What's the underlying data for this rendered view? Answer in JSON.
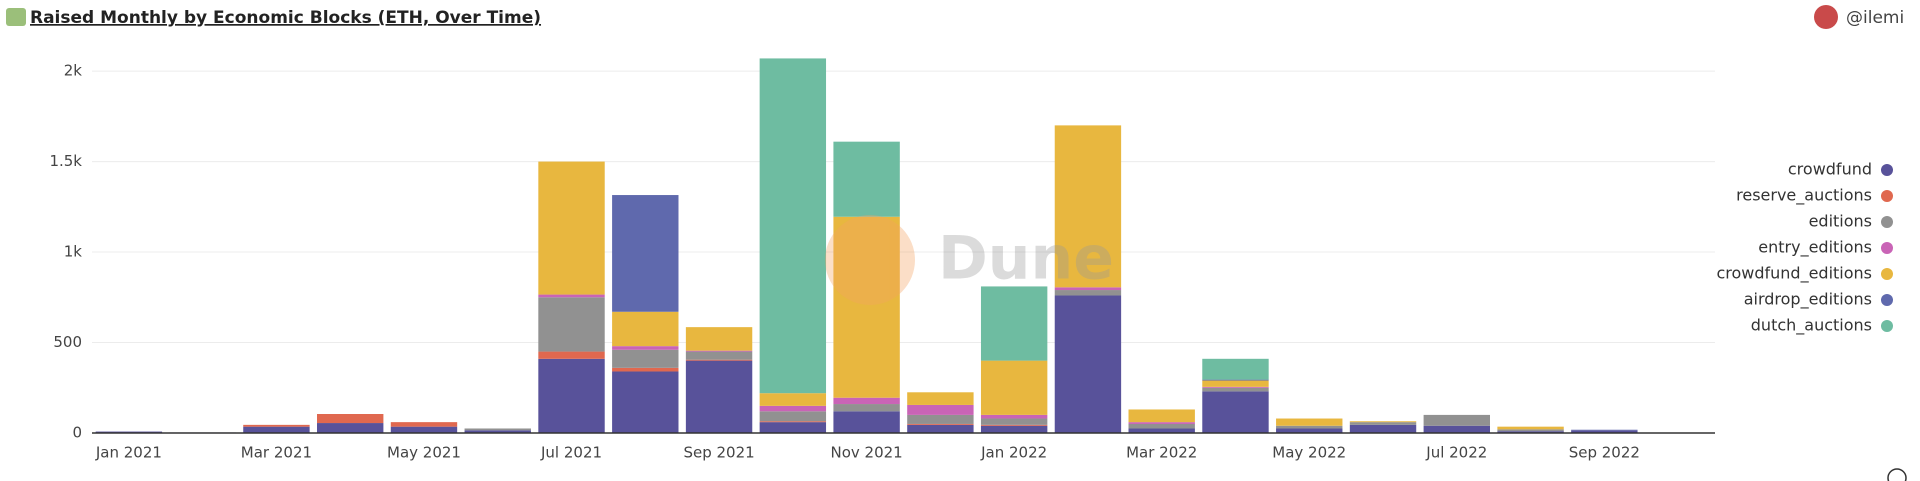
{
  "chart_data": {
    "type": "bar",
    "stacked": true,
    "title": "Raised Monthly by Economic Blocks (ETH, Over Time)",
    "author": "@ilemi",
    "watermark": "Dune",
    "categories": [
      "Jan 2021",
      null,
      "Mar 2021",
      null,
      "May 2021",
      null,
      "Jul 2021",
      null,
      "Sep 2021",
      null,
      "Nov 2021",
      null,
      "Jan 2022",
      null,
      "Mar 2022",
      null,
      "May 2022",
      null,
      "Jul 2022",
      null,
      "Sep 2022",
      null
    ],
    "series": [
      {
        "name": "crowdfund",
        "color": "#58529a",
        "values": [
          8,
          3,
          35,
          55,
          35,
          15,
          410,
          340,
          400,
          60,
          120,
          45,
          40,
          760,
          25,
          230,
          25,
          45,
          40,
          10,
          15,
          0
        ]
      },
      {
        "name": "reserve_auctions",
        "color": "#e0684f",
        "values": [
          0,
          0,
          10,
          50,
          25,
          0,
          40,
          20,
          5,
          5,
          0,
          5,
          5,
          0,
          0,
          0,
          0,
          0,
          0,
          0,
          0,
          0
        ]
      },
      {
        "name": "editions",
        "color": "#919191",
        "values": [
          0,
          0,
          0,
          0,
          0,
          10,
          300,
          100,
          45,
          55,
          40,
          50,
          35,
          30,
          25,
          20,
          15,
          15,
          60,
          10,
          0,
          0
        ]
      },
      {
        "name": "entry_editions",
        "color": "#c964b6",
        "values": [
          0,
          0,
          0,
          0,
          0,
          0,
          15,
          20,
          5,
          30,
          35,
          55,
          20,
          15,
          10,
          5,
          0,
          0,
          0,
          0,
          0,
          0
        ]
      },
      {
        "name": "crowdfund_editions",
        "color": "#e8b73f",
        "values": [
          0,
          0,
          0,
          0,
          0,
          0,
          735,
          190,
          130,
          70,
          1000,
          70,
          300,
          895,
          70,
          35,
          40,
          5,
          0,
          15,
          0,
          0
        ]
      },
      {
        "name": "airdrop_editions",
        "color": "#5f69ad",
        "values": [
          0,
          0,
          0,
          0,
          0,
          0,
          0,
          645,
          0,
          0,
          0,
          0,
          0,
          0,
          0,
          5,
          0,
          0,
          0,
          0,
          3,
          0
        ]
      },
      {
        "name": "dutch_auctions",
        "color": "#6ebca1",
        "values": [
          0,
          0,
          0,
          0,
          0,
          0,
          0,
          0,
          0,
          1850,
          415,
          0,
          410,
          0,
          0,
          115,
          0,
          0,
          0,
          0,
          0,
          0
        ]
      }
    ],
    "ylim": [
      0,
      2100
    ],
    "yticks": [
      0,
      500,
      {
        "value": 1000,
        "label": "1k"
      },
      {
        "value": 1500,
        "label": "1.5k"
      },
      {
        "value": 2000,
        "label": "2k"
      }
    ],
    "grid": true,
    "legend": "right"
  }
}
